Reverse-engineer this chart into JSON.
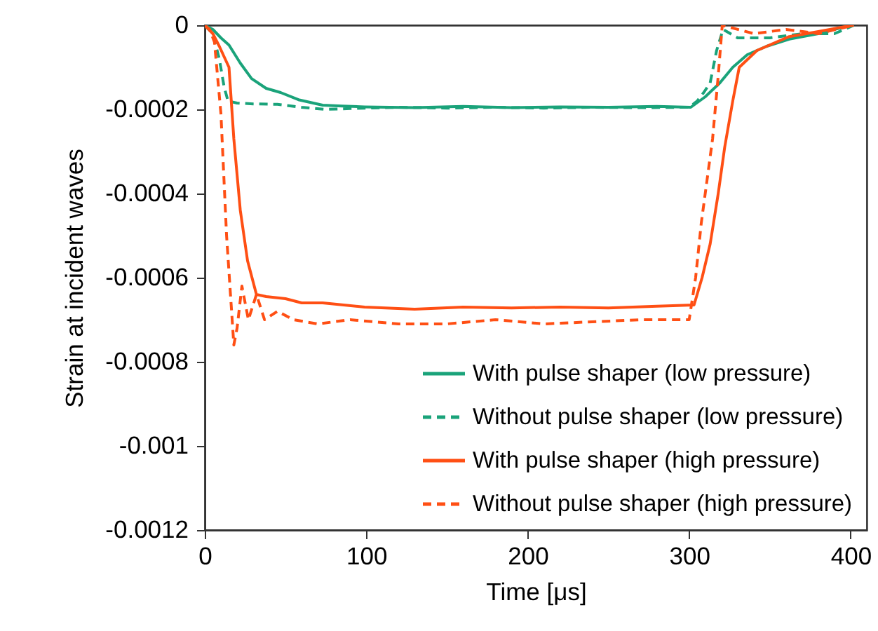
{
  "chart_data": {
    "type": "line",
    "xlabel": "Time [μs]",
    "ylabel": "Strain at incident waves",
    "xlim": [
      0,
      410
    ],
    "xticks": [
      0,
      100,
      200,
      300,
      400
    ],
    "ylim": [
      -0.0012,
      0
    ],
    "yticks": [
      0,
      -0.0002,
      -0.0004,
      -0.0006,
      -0.0008,
      -0.001,
      -0.0012
    ],
    "grid": false,
    "legend": "bottom right",
    "series": [
      {
        "name": "With pulse shaper (low pressure)",
        "color": "#1aa37a",
        "line_style": "solid",
        "x": [
          0,
          5,
          10,
          15,
          22,
          29,
          38,
          47,
          58,
          73,
          85,
          99,
          130,
          160,
          190,
          220,
          250,
          280,
          301,
          310,
          319,
          327,
          336,
          348,
          362,
          380,
          397,
          402
        ],
        "values": [
          0,
          -1e-05,
          -3e-05,
          -4.7e-05,
          -9e-05,
          -0.000127,
          -0.00015,
          -0.00016,
          -0.000177,
          -0.00019,
          -0.000192,
          -0.000194,
          -0.000196,
          -0.000193,
          -0.000196,
          -0.000194,
          -0.000195,
          -0.000193,
          -0.000195,
          -0.00017,
          -0.000137,
          -0.0001,
          -7e-05,
          -5e-05,
          -3.3e-05,
          -2e-05,
          -3e-06,
          0
        ]
      },
      {
        "name": "Without pulse shaper (low pressure)",
        "color": "#1aa37a",
        "line_style": "dashed",
        "x": [
          0,
          5,
          9,
          12,
          14.4,
          20,
          30,
          45,
          60,
          75,
          90,
          120,
          150,
          180,
          210,
          240,
          270,
          300,
          305,
          309,
          313,
          317,
          321,
          330,
          350,
          370,
          390,
          402
        ],
        "values": [
          0,
          -2e-05,
          -8e-05,
          -0.000147,
          -0.00018,
          -0.000185,
          -0.000187,
          -0.000188,
          -0.000195,
          -0.0002,
          -0.000198,
          -0.000195,
          -0.000197,
          -0.000195,
          -0.000197,
          -0.000195,
          -0.000196,
          -0.000195,
          -0.00018,
          -0.00016,
          -0.000137,
          -6e-05,
          -1e-05,
          -3e-05,
          -3e-05,
          -2e-05,
          -2e-05,
          0
        ]
      },
      {
        "name": "With pulse shaper (high pressure)",
        "color": "#ff4f14",
        "line_style": "solid",
        "x": [
          0,
          5,
          9,
          15,
          18,
          22,
          26.5,
          32,
          38,
          50,
          60,
          73,
          99,
          130,
          160,
          190,
          220,
          250,
          280,
          303,
          308,
          313,
          318,
          322,
          327,
          331,
          342,
          362,
          380,
          397,
          402
        ],
        "values": [
          0,
          -2e-05,
          -5e-05,
          -0.0001,
          -0.00027,
          -0.00044,
          -0.00056,
          -0.00064,
          -0.000645,
          -0.00065,
          -0.00066,
          -0.00066,
          -0.00067,
          -0.000675,
          -0.00067,
          -0.000672,
          -0.00067,
          -0.000672,
          -0.000668,
          -0.000665,
          -0.0006,
          -0.00052,
          -0.0004,
          -0.00029,
          -0.00018,
          -0.0001,
          -6e-05,
          -2.7e-05,
          -1.5e-05,
          -3e-06,
          0
        ]
      },
      {
        "name": "Without pulse shaper (high pressure)",
        "color": "#ff4f14",
        "line_style": "dashed",
        "x": [
          0,
          3,
          6,
          10,
          13.5,
          18,
          20,
          23,
          27,
          32,
          37,
          45,
          55,
          70,
          90,
          120,
          150,
          180,
          210,
          240,
          270,
          300,
          304,
          307.5,
          311,
          314.5,
          318,
          320.5,
          340,
          360,
          380,
          402
        ],
        "values": [
          0,
          -1e-05,
          -4e-05,
          -0.00021,
          -0.0005,
          -0.00076,
          -0.00072,
          -0.00062,
          -0.0007,
          -0.00064,
          -0.0007,
          -0.00068,
          -0.0007,
          -0.00071,
          -0.0007,
          -0.00071,
          -0.00071,
          -0.0007,
          -0.00071,
          -0.000705,
          -0.0007,
          -0.0007,
          -0.0006,
          -0.00047,
          -0.00037,
          -0.00027,
          -0.00012,
          0,
          -2e-05,
          -1e-05,
          -2e-05,
          0
        ]
      }
    ]
  }
}
